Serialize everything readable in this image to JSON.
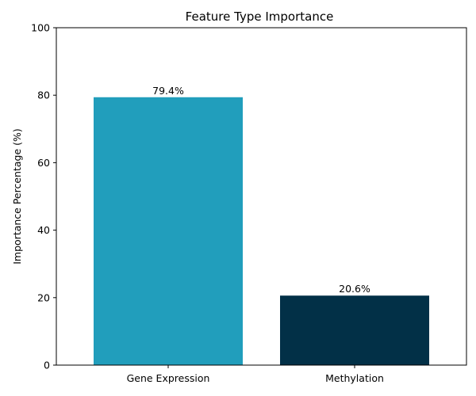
{
  "chart_data": {
    "type": "bar",
    "title": "Feature Type Importance",
    "xlabel": "",
    "ylabel": "Importance Percentage (%)",
    "categories": [
      "Gene Expression",
      "Methylation"
    ],
    "values": [
      79.4,
      20.6
    ],
    "data_labels": [
      "79.4%",
      "20.6%"
    ],
    "colors": [
      "#219EBC",
      "#023047"
    ],
    "ylim": [
      0,
      100
    ],
    "yticks": [
      0,
      20,
      40,
      60,
      80,
      100
    ],
    "grid": false,
    "legend": "none"
  }
}
